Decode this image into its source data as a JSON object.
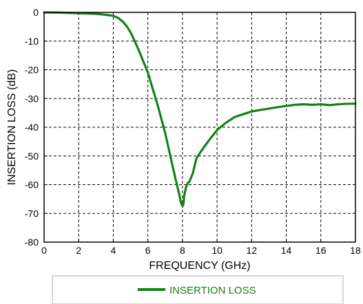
{
  "chart_data": {
    "type": "line",
    "title": "",
    "xlabel": "FREQUENCY (GHz)",
    "ylabel": "INSERTION LOSS (dB)",
    "xlim": [
      0,
      18
    ],
    "ylim": [
      -80,
      0
    ],
    "xticks": [
      "0",
      "2",
      "4",
      "6",
      "8",
      "10",
      "12",
      "14",
      "16",
      "18"
    ],
    "yticks": [
      "0",
      "-10",
      "-20",
      "-30",
      "-40",
      "-50",
      "-60",
      "-70",
      "-80"
    ],
    "grid": true,
    "legend_position": "bottom",
    "series": [
      {
        "name": "INSERTION LOSS",
        "color": "#168016",
        "x": [
          0,
          1,
          2,
          3,
          3.5,
          4,
          4.3,
          4.6,
          4.8,
          5.0,
          5.2,
          5.5,
          5.8,
          6.0,
          6.3,
          6.6,
          7.0,
          7.3,
          7.6,
          7.8,
          7.9,
          8.0,
          8.05,
          8.1,
          8.2,
          8.3,
          8.4,
          8.6,
          8.8,
          9.0,
          9.3,
          9.6,
          10.0,
          10.5,
          11.0,
          11.5,
          12.0,
          12.5,
          13.0,
          13.5,
          14.0,
          14.5,
          15.0,
          15.5,
          16.0,
          16.5,
          17.0,
          17.5,
          18.0
        ],
        "y": [
          0,
          -0.1,
          -0.3,
          -0.5,
          -0.8,
          -1.2,
          -2.0,
          -3.5,
          -5.0,
          -7.0,
          -9.5,
          -13.5,
          -18.0,
          -21.0,
          -27.0,
          -33.0,
          -42.0,
          -50.0,
          -58.0,
          -63.0,
          -66.0,
          -67.5,
          -67.0,
          -64.0,
          -61.0,
          -59.5,
          -59.0,
          -56.0,
          -51.0,
          -49.0,
          -46.5,
          -44.0,
          -41.0,
          -38.5,
          -36.5,
          -35.5,
          -34.5,
          -34.0,
          -33.5,
          -33.0,
          -32.6,
          -32.2,
          -32.0,
          -32.2,
          -32.0,
          -32.3,
          -32.0,
          -31.8,
          -31.8
        ]
      }
    ],
    "legend": {
      "label": "INSERTION LOSS"
    }
  }
}
